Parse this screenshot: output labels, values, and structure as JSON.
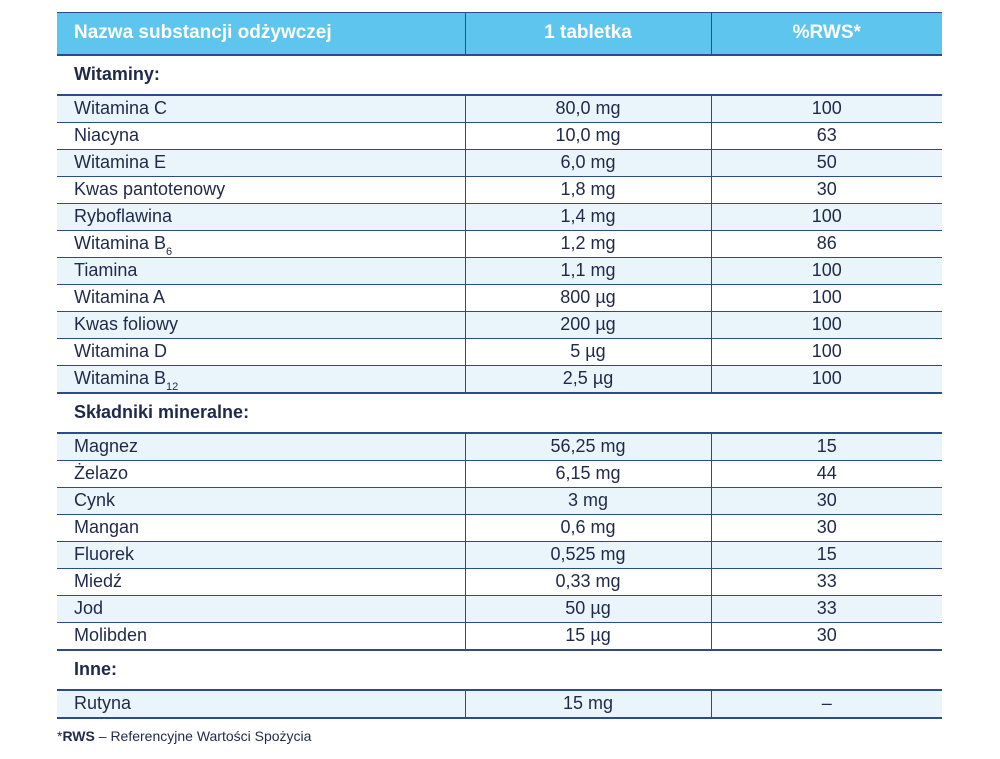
{
  "header": {
    "col_name": "Nazwa substancji odżywczej",
    "col_amount": "1 tabletka",
    "col_rws": "%RWS*"
  },
  "sections": {
    "vitamins": {
      "title": "Witaminy:",
      "rows": [
        {
          "name": "Witamina C",
          "sub": "",
          "amount": "80,0 mg",
          "rws": "100"
        },
        {
          "name": "Niacyna",
          "sub": "",
          "amount": "10,0 mg",
          "rws": "63"
        },
        {
          "name": "Witamina E",
          "sub": "",
          "amount": "6,0 mg",
          "rws": "50"
        },
        {
          "name": "Kwas pantotenowy",
          "sub": "",
          "amount": "1,8 mg",
          "rws": "30"
        },
        {
          "name": "Ryboflawina",
          "sub": "",
          "amount": "1,4 mg",
          "rws": "100"
        },
        {
          "name": "Witamina B",
          "sub": "6",
          "amount": "1,2 mg",
          "rws": "86"
        },
        {
          "name": "Tiamina",
          "sub": "",
          "amount": "1,1 mg",
          "rws": "100"
        },
        {
          "name": "Witamina A",
          "sub": "",
          "amount": "800 µg",
          "rws": "100"
        },
        {
          "name": "Kwas foliowy",
          "sub": "",
          "amount": "200 µg",
          "rws": "100"
        },
        {
          "name": "Witamina D",
          "sub": "",
          "amount": "5 µg",
          "rws": "100"
        },
        {
          "name": "Witamina B",
          "sub": "12",
          "amount": "2,5 µg",
          "rws": "100"
        }
      ]
    },
    "minerals": {
      "title": "Składniki mineralne:",
      "rows": [
        {
          "name": "Magnez",
          "sub": "",
          "amount": "56,25 mg",
          "rws": "15"
        },
        {
          "name": "Żelazo",
          "sub": "",
          "amount": "6,15 mg",
          "rws": "44"
        },
        {
          "name": "Cynk",
          "sub": "",
          "amount": "3 mg",
          "rws": "30"
        },
        {
          "name": "Mangan",
          "sub": "",
          "amount": "0,6 mg",
          "rws": "30"
        },
        {
          "name": "Fluorek",
          "sub": "",
          "amount": "0,525 mg",
          "rws": "15"
        },
        {
          "name": "Miedź",
          "sub": "",
          "amount": "0,33 mg",
          "rws": "33"
        },
        {
          "name": "Jod",
          "sub": "",
          "amount": "50 µg",
          "rws": "33"
        },
        {
          "name": "Molibden",
          "sub": "",
          "amount": "15 µg",
          "rws": "30"
        }
      ]
    },
    "other": {
      "title": "Inne:",
      "rows": [
        {
          "name": "Rutyna",
          "sub": "",
          "amount": "15 mg",
          "rws": "–"
        }
      ]
    }
  },
  "footnote": {
    "marker": "*",
    "abbr": "RWS",
    "text": " – Referencyjne Wartości Spożycia"
  },
  "colors": {
    "header_bg": "#5ec5ee",
    "row_alt_bg": "#e9f4fb",
    "rule": "#2c4b8c",
    "text": "#1f2a4a"
  }
}
